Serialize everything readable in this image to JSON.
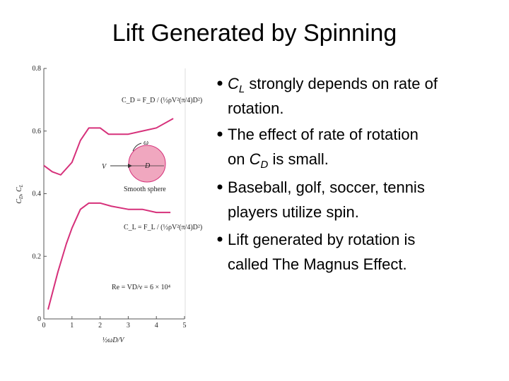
{
  "title": "Lift Generated by Spinning",
  "bullets": [
    [
      [
        "C",
        "L",
        " strongly depends on rate of"
      ],
      [
        "rotation."
      ]
    ],
    [
      [
        "The effect of rate of rotation"
      ],
      [
        "on ",
        "C",
        "D",
        " is small."
      ]
    ],
    [
      [
        "Baseball, golf, soccer, tennis"
      ],
      [
        "players utilize spin."
      ]
    ],
    [
      [
        "Lift generated by rotation is"
      ],
      [
        "called The Magnus Effect."
      ]
    ]
  ],
  "chart_data": {
    "type": "line",
    "y_label": [
      "C",
      "D",
      ", C",
      "L"
    ],
    "x_label": "½ωD/V",
    "annotations": [
      "C_D = F_D / (½ρV²(π/4)D²)",
      "ω",
      "V",
      "D",
      "Smooth sphere",
      "C_L = F_L / (½ρV²(π/4)D²)",
      "Re = VD/ν = 6 × 10⁴"
    ],
    "xlim": [
      0,
      5
    ],
    "xticks": [
      0,
      1,
      2,
      3,
      4,
      5
    ],
    "ylim": [
      0,
      0.8
    ],
    "yticks": [
      0,
      0.2,
      0.4,
      0.6,
      0.8
    ],
    "series": [
      {
        "color": "#d6307a",
        "x": [
          0,
          0.3,
          0.6,
          1.0,
          1.3,
          1.6,
          2.0,
          2.3,
          2.6,
          3.0,
          3.5,
          4.0,
          4.6
        ],
        "values": [
          0.49,
          0.47,
          0.46,
          0.5,
          0.57,
          0.61,
          0.61,
          0.59,
          0.59,
          0.59,
          0.6,
          0.61,
          0.64
        ]
      },
      {
        "color": "#d6307a",
        "x": [
          0.15,
          0.5,
          0.8,
          1.0,
          1.3,
          1.6,
          2.0,
          2.4,
          3.0,
          3.5,
          4.0,
          4.5
        ],
        "values": [
          0.03,
          0.15,
          0.24,
          0.29,
          0.35,
          0.37,
          0.37,
          0.36,
          0.35,
          0.35,
          0.34,
          0.34
        ]
      }
    ]
  }
}
